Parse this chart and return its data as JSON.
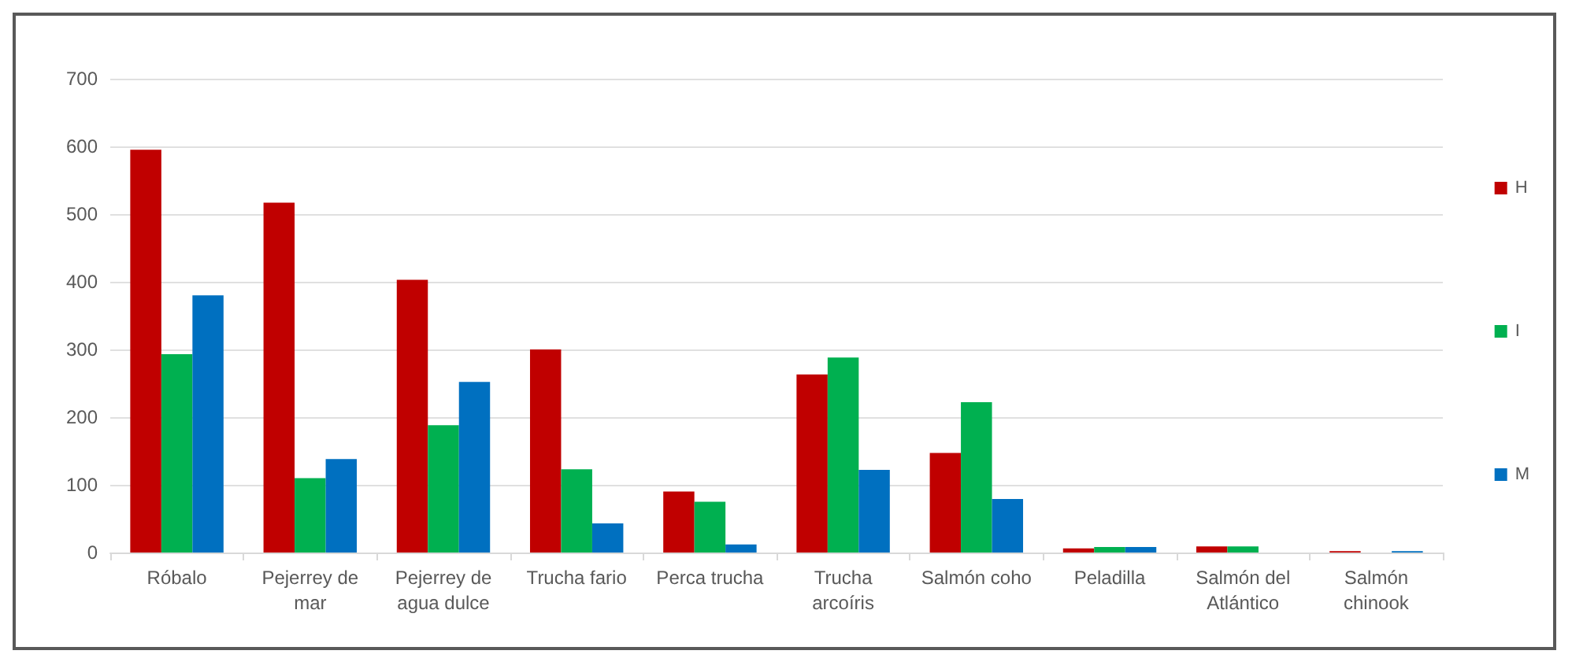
{
  "chart_data": {
    "type": "bar",
    "categories": [
      "Róbalo",
      "Pejerrey de\nmar",
      "Pejerrey de\nagua dulce",
      "Trucha fario",
      "Perca trucha",
      "Trucha\narcoíris",
      "Salmón coho",
      "Peladilla",
      "Salmón del\nAtlántico",
      "Salmón\nchinook"
    ],
    "series": [
      {
        "name": "H",
        "color": "#c00000",
        "values": [
          595,
          517,
          403,
          300,
          90,
          263,
          147,
          6,
          9,
          2
        ]
      },
      {
        "name": "I",
        "color": "#00b050",
        "values": [
          293,
          110,
          188,
          123,
          75,
          288,
          222,
          8,
          9,
          null
        ]
      },
      {
        "name": "M",
        "color": "#0070c0",
        "values": [
          380,
          138,
          252,
          43,
          12,
          122,
          79,
          8,
          null,
          2
        ]
      }
    ],
    "ylim": [
      0,
      700
    ],
    "yticks": [
      0,
      100,
      200,
      300,
      400,
      500,
      600,
      700
    ],
    "grid": "y",
    "legend": "right"
  }
}
